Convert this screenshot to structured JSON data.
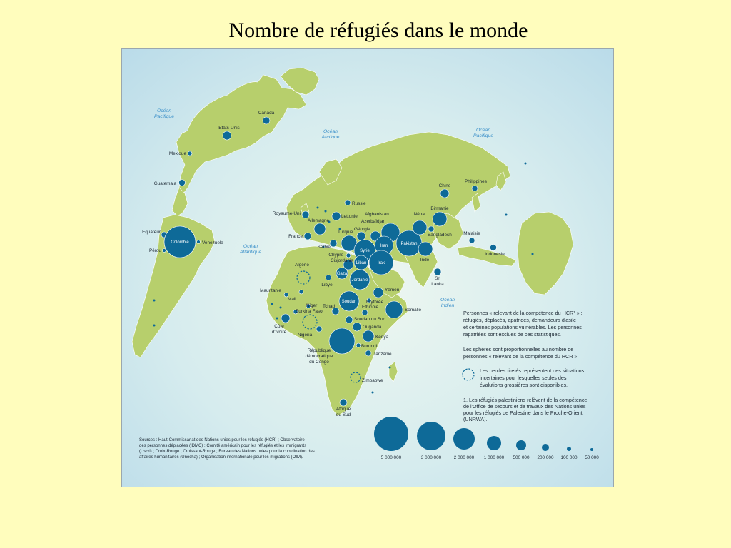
{
  "title": "Nombre de réfugiés dans le monde",
  "colors": {
    "page_background": "#fffdbd",
    "ocean": "#d4eaf1",
    "land": "#b7cf6c",
    "sphere": "#0e6a98",
    "ocean_label": "#3a8fc9"
  },
  "oceans": [
    {
      "name": "ocean-pacifique-left",
      "lines": [
        "Océan",
        "Pacifique"
      ]
    },
    {
      "name": "ocean-arctique",
      "lines": [
        "Océan",
        "Arctique"
      ]
    },
    {
      "name": "ocean-pacifique-right",
      "lines": [
        "Océan",
        "Pacifique"
      ]
    },
    {
      "name": "ocean-atlantique",
      "lines": [
        "Océan",
        "Atlantique"
      ]
    },
    {
      "name": "ocean-indien",
      "lines": [
        "Océan",
        "Indien"
      ]
    }
  ],
  "country_labels": {
    "canada": "Canada",
    "etats_unis": "Etats-Unis",
    "mexique": "Mexique",
    "guatemala": "Guatemala",
    "equateur": "Equateur",
    "colombie": "Colombie",
    "venezuela": "Venezuela",
    "perou": "Pérou",
    "royaume_uni": "Royaume-Uni",
    "allemagne": "Allemagne",
    "france": "France",
    "serbie": "Serbie",
    "chypre": "Chypre",
    "cisjordanie": "Cisjordanie",
    "russie": "Russie",
    "lettonie": "Lettonie",
    "afghanistan": "Afghanistan",
    "azerbaidjan": "Azerbaïdjan",
    "georgie": "Géorgie",
    "turquie": "Turquie",
    "syrie": "Syrie",
    "liban": "Liban",
    "iran": "Iran",
    "irak": "Irak",
    "gaza": "Gaza",
    "jordanie": "Jordanie",
    "pakistan": "Pakistan",
    "nepal": "Népal",
    "birmanie": "Birmanie",
    "bangladesh": "Bangladesh",
    "inde": "Inde",
    "sri_lanka": [
      "Sri",
      "Lanka"
    ],
    "chine": "Chine",
    "philippines": "Philippines",
    "malaisie": "Malaisie",
    "indonesie": "Indonésie",
    "algerie": "Algérie",
    "libye": "Libye",
    "mauritanie": "Mauritanie",
    "mali": "Mali",
    "niger": "Niger",
    "burkina_faso": "Burkina Faso",
    "tchad": "Tchad",
    "cote_divoire": [
      "Côte",
      "d'Ivoire"
    ],
    "nigeria": "Nigeria",
    "soudan": "Soudan",
    "yemen": "Yémen",
    "erythree": "Erythrée",
    "ethiopie": "Ethiopie",
    "somalie": "Somalie",
    "soudan_du_sud": "Soudan du Sud",
    "ouganda": "Ouganda",
    "kenya": "Kenya",
    "burundi": "Burundi",
    "tanzanie": "Tanzanie",
    "rdc": [
      "République",
      "démocratique",
      "du Congo"
    ],
    "zimbabwe": "Zimbabwe",
    "afrique_du_sud": [
      "Afrique",
      "du Sud"
    ]
  },
  "notes": {
    "definition": [
      "Personnes « relevant de la compétence du HCR¹ » :",
      "réfugiés, déplacés, apatrides, demandeurs d'asile",
      "et certaines populations vulnérables. Les personnes",
      "rapatriées sont exclues de ces statistiques."
    ],
    "spheres": [
      "Les sphères sont proportionnelles au nombre de",
      "personnes « relevant de la compétence du HCR »."
    ],
    "dashed": [
      "Les cercles tiretés représentent des situations",
      "incertaines pour lesquelles seules des",
      "évalutions grossières sont disponibles."
    ],
    "footnote": [
      "1. Les réfugiés palestiniens relèvent de la compétence",
      "de  l'Office de secours et de travaux des Nations unies",
      "pour les réfugiés de Palestine dans le Proche-Orient",
      "(UNRWA)."
    ]
  },
  "sources": [
    "Sources : Haut-Commissariat des Nations unies pour les réfugiés (HCR) ; Observatoire",
    "des personnes déplacées (IDMC) ; Comité américain pour les réfugiés et les immigrants",
    "(Uscri) ; Croix-Rouge ; Croissant-Rouge ; Bureau des Nations unies pour la coordination des",
    "affaires humanitaires (Unocha) ; Organisation internationale pour les migrations (OIM)."
  ],
  "legend": [
    {
      "label": "5 000 000",
      "value": 5000000
    },
    {
      "label": "3 000 000",
      "value": 3000000
    },
    {
      "label": "2 000 000",
      "value": 2000000
    },
    {
      "label": "1 000 000",
      "value": 1000000
    },
    {
      "label": "500 000",
      "value": 500000
    },
    {
      "label": "200 000",
      "value": 200000
    },
    {
      "label": "100 000",
      "value": 100000
    },
    {
      "label": "50 000",
      "value": 50000
    }
  ]
}
